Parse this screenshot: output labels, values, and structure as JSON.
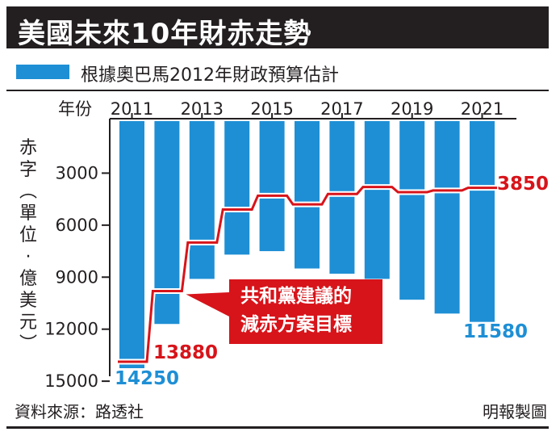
{
  "title": "美國未來10年財赤走勢",
  "legend": {
    "label": "根據奧巴馬2012年財政預算估計"
  },
  "x_axis": {
    "prefix": "年份"
  },
  "y_axis": {
    "title_chars": [
      "赤",
      "字",
      "︵",
      "單",
      "位",
      "·",
      "億",
      "美",
      "元",
      "︶"
    ]
  },
  "callout": {
    "line1": "共和黨建議的",
    "line2": "減赤方案目標"
  },
  "value_labels": {
    "red_start": "13880",
    "red_end": "3850",
    "blue_start": "14250",
    "blue_end": "11580"
  },
  "footer": {
    "source": "資料來源：路透社",
    "credit": "明報製圖"
  },
  "colors": {
    "bar": "#1e8fd5",
    "line": "#d7141a",
    "title_bg": "#231f20"
  },
  "chart_data": {
    "type": "bar",
    "categories": [
      "2011",
      "2012",
      "2013",
      "2014",
      "2015",
      "2016",
      "2017",
      "2018",
      "2019",
      "2020",
      "2021"
    ],
    "x_tick_labels": [
      "2011",
      "2013",
      "2015",
      "2017",
      "2019",
      "2021"
    ],
    "y_ticks": [
      3000,
      6000,
      9000,
      12000,
      15000
    ],
    "ylim": [
      0,
      15000
    ],
    "y_inverted": true,
    "series": [
      {
        "type": "bar",
        "values": [
          14250,
          11700,
          9100,
          7700,
          7500,
          8500,
          8800,
          9100,
          10300,
          11100,
          11580
        ]
      },
      {
        "type": "step",
        "values": [
          13880,
          9800,
          7000,
          5100,
          4300,
          4800,
          4200,
          3800,
          4100,
          4000,
          3850
        ]
      }
    ],
    "grid": false
  }
}
